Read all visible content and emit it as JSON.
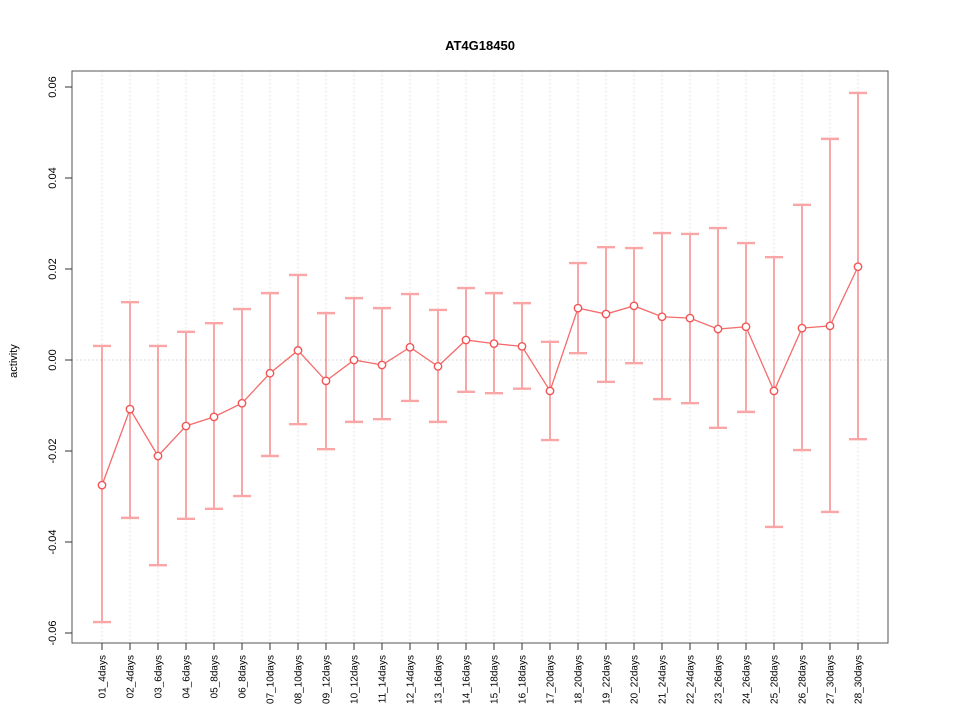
{
  "header": {
    "title": "AT4G18450"
  },
  "colors": {
    "errorbar_line": "#f98080",
    "errorbar_cap": "#fba6a6",
    "series_line": "#f56b6b",
    "point_stroke": "#f25555",
    "point_fill": "#ffffff",
    "grid_line": "#dcdcdc",
    "zero_line": "#d4d4d4",
    "frame": "#555555",
    "tick": "#333333",
    "text": "#000000"
  },
  "chart_data": {
    "type": "line",
    "title": "AT4G18450",
    "xlabel": "",
    "ylabel": "activity",
    "ylim": [
      -0.06,
      0.06
    ],
    "ytick_labels": [
      "-0.06",
      "-0.04",
      "-0.02",
      "0.00",
      "0.02",
      "0.04",
      "0.06"
    ],
    "ytick_values": [
      -0.06,
      -0.04,
      -0.02,
      0.0,
      0.02,
      0.04,
      0.06
    ],
    "grid": "vertical dotted gridline at each category; dotted horizontal line at y=0",
    "legend_position": "none",
    "marker": "open-circle",
    "error_bars": true,
    "categories": [
      "01_4days",
      "02_4days",
      "03_6days",
      "04_6days",
      "05_8days",
      "06_8days",
      "07_10days",
      "08_10days",
      "09_12days",
      "10_12days",
      "11_14days",
      "12_14days",
      "13_16days",
      "14_16days",
      "15_18days",
      "16_18days",
      "17_20days",
      "18_20days",
      "19_22days",
      "20_22days",
      "21_24days",
      "22_24days",
      "23_26days",
      "24_26days",
      "25_28days",
      "26_28days",
      "27_30days",
      "28_30days"
    ],
    "series": [
      {
        "name": "activity",
        "values": [
          -0.0275,
          -0.0108,
          -0.0211,
          -0.0145,
          -0.0125,
          -0.0095,
          -0.0029,
          0.0021,
          -0.0046,
          0.0,
          -0.0011,
          0.0028,
          -0.0014,
          0.0044,
          0.0036,
          0.003,
          -0.0068,
          0.0114,
          0.0101,
          0.0119,
          0.0095,
          0.0092,
          0.0068,
          0.0073,
          -0.0068,
          0.007,
          0.0075,
          0.0205
        ],
        "error_low": [
          -0.0576,
          -0.0347,
          -0.0451,
          -0.0349,
          -0.0327,
          -0.0299,
          -0.0211,
          -0.0141,
          -0.0196,
          -0.0136,
          -0.013,
          -0.009,
          -0.0136,
          -0.007,
          -0.0073,
          -0.0063,
          -0.0176,
          0.0015,
          -0.0048,
          -0.0007,
          -0.0086,
          -0.0095,
          -0.0149,
          -0.0114,
          -0.0367,
          -0.0198,
          -0.0334,
          -0.0174
        ],
        "error_high": [
          0.0031,
          0.0127,
          0.0031,
          0.0062,
          0.0081,
          0.0112,
          0.0147,
          0.0187,
          0.0103,
          0.0136,
          0.0114,
          0.0145,
          0.011,
          0.0158,
          0.0147,
          0.0125,
          0.004,
          0.0213,
          0.0248,
          0.0246,
          0.0279,
          0.0277,
          0.029,
          0.0257,
          0.0226,
          0.0341,
          0.0486,
          0.0587
        ]
      }
    ]
  }
}
